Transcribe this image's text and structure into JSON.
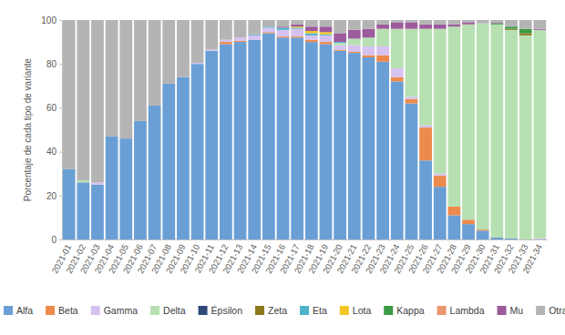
{
  "chart_data": {
    "type": "bar",
    "stacked": true,
    "grid": false,
    "legend": "bottom",
    "ylabel": "Porcentaje de cada tipo de variante",
    "ylim": [
      0,
      100
    ],
    "yticks": [
      0,
      20,
      40,
      60,
      80,
      100
    ],
    "categories": [
      "2021-01",
      "2021-02",
      "2021-03",
      "2021-04",
      "2021-05",
      "2021-06",
      "2021-07",
      "2021-08",
      "2021-09",
      "2021-10",
      "2021-11",
      "2021-12",
      "2021-13",
      "2021-14",
      "2021-15",
      "2021-16",
      "2021-17",
      "2021-18",
      "2021-19",
      "2021-20",
      "2021-21",
      "2021-22",
      "2021-23",
      "2021-24",
      "2021-25",
      "2021-26",
      "2021-27",
      "2021-28",
      "2021-29",
      "2021-30",
      "2021-31",
      "2021-32",
      "2021-33",
      "2021-34"
    ],
    "series": [
      {
        "name": "Alfa",
        "color": "#6a9fd6",
        "values": [
          32,
          26,
          25,
          47,
          46,
          54,
          61,
          71,
          74,
          80,
          86,
          89,
          90,
          91,
          94,
          92,
          92,
          90,
          89,
          86,
          85,
          83,
          81,
          72,
          62,
          36,
          24,
          11,
          7,
          4,
          1,
          0.5,
          0,
          0
        ]
      },
      {
        "name": "Beta",
        "color": "#ec8a4c",
        "values": [
          0,
          0,
          0,
          0,
          0,
          0,
          0,
          0,
          0,
          0,
          0,
          1,
          0.5,
          0,
          0.5,
          0.5,
          0.5,
          1,
          1,
          0.5,
          0.5,
          1,
          3,
          2,
          2,
          15,
          5,
          4,
          2,
          0.5,
          0,
          0,
          0,
          0
        ]
      },
      {
        "name": "Gamma",
        "color": "#d6c2f0",
        "values": [
          0,
          0,
          1,
          0,
          0,
          0,
          0,
          0,
          0,
          0.5,
          0.5,
          1,
          1.5,
          2,
          2,
          3,
          3.5,
          2,
          3,
          2,
          3,
          4,
          4,
          4,
          1,
          1,
          1,
          0,
          0,
          0,
          0,
          0,
          0,
          0.5
        ]
      },
      {
        "name": "Delta",
        "color": "#b7e0b2",
        "values": [
          0,
          1,
          0,
          0,
          0,
          0,
          0,
          0,
          0,
          0,
          0,
          0,
          0,
          0,
          0,
          0,
          0,
          0,
          0,
          1,
          3,
          4,
          8,
          18,
          31,
          44,
          66,
          82,
          89,
          94,
          97,
          95,
          93,
          95
        ]
      },
      {
        "name": "Épsilon",
        "color": "#2f4a7a",
        "values": [
          0,
          0,
          0,
          0,
          0,
          0,
          0,
          0,
          0,
          0,
          0,
          0,
          0,
          0,
          0,
          0,
          0,
          0,
          0,
          0,
          0,
          0,
          0,
          0,
          0,
          0,
          0,
          0,
          0,
          0,
          0,
          0,
          0,
          0
        ]
      },
      {
        "name": "Zeta",
        "color": "#8c7a1e",
        "values": [
          0,
          0,
          0,
          0,
          0,
          0,
          0,
          0,
          0,
          0,
          0,
          0,
          0,
          0,
          0,
          0,
          0,
          0,
          0,
          0,
          0,
          0,
          0,
          0,
          0,
          0,
          0,
          0,
          0,
          0,
          0,
          0.5,
          1,
          0
        ]
      },
      {
        "name": "Eta",
        "color": "#4fb3c9",
        "values": [
          0,
          0,
          0,
          0,
          0,
          0,
          0,
          0,
          0,
          0,
          0,
          0,
          0,
          0.5,
          0.5,
          1,
          0.5,
          1,
          0.5,
          0.5,
          0,
          0,
          0,
          0,
          0,
          0,
          0,
          0,
          0,
          0,
          0,
          0,
          0,
          0
        ]
      },
      {
        "name": "Lota",
        "color": "#f3c623",
        "values": [
          0,
          0,
          0,
          0,
          0,
          0,
          0,
          0,
          0,
          0,
          0,
          0,
          0,
          0,
          0,
          0,
          0.5,
          1,
          1,
          0,
          0,
          0,
          0,
          0,
          0,
          0,
          0,
          0,
          0,
          0,
          0,
          0,
          0,
          0
        ]
      },
      {
        "name": "Kappa",
        "color": "#3d9a45",
        "values": [
          0,
          0,
          0,
          0,
          0,
          0,
          0,
          0,
          0,
          0,
          0,
          0,
          0,
          0,
          0,
          0,
          0,
          0,
          0,
          0,
          0,
          0,
          0,
          0,
          0,
          0,
          0,
          0,
          0,
          0,
          0.5,
          1,
          2,
          0
        ]
      },
      {
        "name": "Lambda",
        "color": "#e9976e",
        "values": [
          0,
          0,
          0,
          0,
          0,
          0,
          0,
          0,
          0,
          0,
          0,
          0,
          0,
          0,
          0,
          0,
          0,
          0,
          0,
          0,
          0,
          0,
          0,
          0,
          0,
          0,
          0,
          0,
          0,
          0,
          0,
          0,
          0,
          0
        ]
      },
      {
        "name": "Mu",
        "color": "#9c5b9c",
        "values": [
          0,
          0,
          0,
          0,
          0,
          0,
          0,
          0,
          0,
          0,
          0,
          0,
          0,
          0,
          0,
          0.5,
          1,
          2,
          2.5,
          4,
          4,
          4,
          2,
          3,
          3,
          2,
          2,
          1,
          1,
          0,
          0.5,
          0,
          0,
          0.5
        ]
      },
      {
        "name": "Otra variante",
        "color": "#b4b4b4",
        "values": [
          68,
          73,
          74,
          53,
          54,
          46,
          39,
          29,
          26,
          19.5,
          13.5,
          9,
          8,
          6.5,
          3,
          3,
          2,
          3,
          3,
          6,
          4.5,
          4,
          2,
          1,
          1,
          2,
          2,
          2,
          1,
          1.5,
          1,
          3,
          4,
          4
        ]
      }
    ]
  }
}
